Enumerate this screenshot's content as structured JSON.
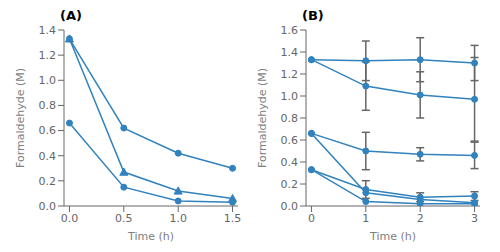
{
  "chart_data": [
    {
      "type": "line",
      "title": "(A)",
      "x_label": "Time (h)",
      "y_label": "Formaldehyde (M)",
      "xlim": [
        -0.05,
        1.55
      ],
      "ylim": [
        0,
        1.4
      ],
      "xticks": [
        {
          "value": 0,
          "label": "0.0"
        },
        0.5,
        {
          "value": 1.0,
          "label": "1.0"
        },
        1.5
      ],
      "yticks": [
        {
          "value": 0.0,
          "label": "0.0"
        },
        0.2,
        0.4,
        0.6,
        0.8,
        {
          "value": 1.0,
          "label": "1.0"
        },
        1.2,
        1.4
      ],
      "grid": false,
      "series": [
        {
          "marker": "circle",
          "x": [
            0,
            0.5,
            1.0,
            1.5
          ],
          "values": [
            1.33,
            0.62,
            0.42,
            0.3
          ]
        },
        {
          "marker": "triangle",
          "x": [
            0,
            0.5,
            1.0,
            1.5
          ],
          "values": [
            1.33,
            0.27,
            0.12,
            0.06
          ]
        },
        {
          "marker": "circle",
          "x": [
            0,
            0.5,
            1.0,
            1.5
          ],
          "values": [
            0.66,
            0.15,
            0.04,
            0.03
          ]
        }
      ]
    },
    {
      "type": "line",
      "title": "(B)",
      "x_label": "Time (h)",
      "y_label": "Formaldehyde (M)",
      "xlim": [
        -0.1,
        3.1
      ],
      "ylim": [
        0,
        1.6
      ],
      "xticks": [
        0,
        1,
        2,
        3
      ],
      "yticks": [
        {
          "value": 0.0,
          "label": "0.0"
        },
        0.2,
        0.4,
        0.6,
        0.8,
        {
          "value": 1.0,
          "label": "1.0"
        },
        1.2,
        1.4,
        1.6
      ],
      "grid": false,
      "series": [
        {
          "marker": "circle",
          "x": [
            0,
            1,
            2,
            3
          ],
          "values": [
            1.33,
            1.32,
            1.33,
            1.3
          ],
          "yerr": [
            0.0,
            0.18,
            0.2,
            0.16
          ]
        },
        {
          "marker": "circle",
          "x": [
            0,
            1,
            2,
            3
          ],
          "values": [
            1.33,
            1.09,
            1.01,
            0.97
          ],
          "yerr": [
            0.0,
            0.22,
            0.21,
            0.38
          ]
        },
        {
          "marker": "circle",
          "x": [
            0,
            1,
            2,
            3
          ],
          "values": [
            0.66,
            0.5,
            0.47,
            0.46
          ],
          "yerr": [
            0.0,
            0.17,
            0.06,
            0.12
          ]
        },
        {
          "marker": "circle",
          "x": [
            0,
            1,
            2,
            3
          ],
          "values": [
            0.33,
            0.15,
            0.08,
            0.09
          ],
          "yerr": [
            0.0,
            0.08,
            0.04,
            0.04
          ]
        },
        {
          "marker": "circle",
          "x": [
            0,
            1,
            2,
            3
          ],
          "values": [
            0.66,
            0.12,
            0.06,
            0.03
          ],
          "yerr": [
            0.0,
            0.0,
            0.0,
            0.0
          ]
        },
        {
          "marker": "circle",
          "x": [
            0,
            1,
            2,
            3
          ],
          "values": [
            0.33,
            0.04,
            0.02,
            0.02
          ],
          "yerr": [
            0.0,
            0.0,
            0.0,
            0.0
          ]
        }
      ]
    }
  ]
}
